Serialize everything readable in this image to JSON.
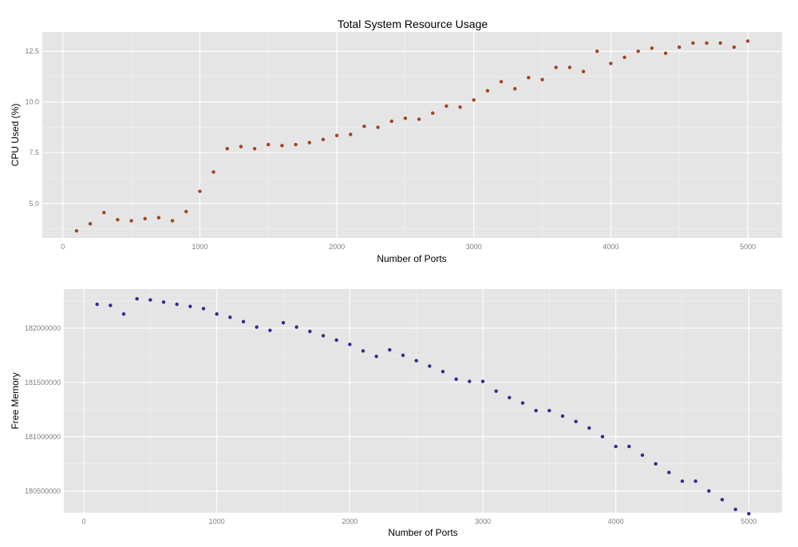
{
  "chart_data": [
    {
      "type": "scatter",
      "title": "Total System Resource Usage",
      "xlabel": "Number of Ports",
      "ylabel": "CPU Used (%)",
      "xlim": [
        -150,
        5250
      ],
      "ylim": [
        3.3,
        13.45
      ],
      "x_ticks": [
        0,
        1000,
        2000,
        3000,
        4000,
        5000
      ],
      "x_tick_labels": [
        "0",
        "1000",
        "2000",
        "3000",
        "4000",
        "5000"
      ],
      "y_ticks": [
        5.0,
        7.5,
        10.0,
        12.5
      ],
      "y_tick_labels": [
        "5.0",
        "7.5",
        "10.0",
        "12.5"
      ],
      "grid": true,
      "point_color": "#a0461f",
      "x": [
        100,
        200,
        300,
        400,
        500,
        600,
        700,
        800,
        900,
        1000,
        1100,
        1200,
        1300,
        1400,
        1500,
        1600,
        1700,
        1800,
        1900,
        2000,
        2100,
        2200,
        2300,
        2400,
        2500,
        2600,
        2700,
        2800,
        2900,
        3000,
        3100,
        3200,
        3300,
        3400,
        3500,
        3600,
        3700,
        3800,
        3900,
        4000,
        4100,
        4200,
        4300,
        4400,
        4500,
        4600,
        4700,
        4800,
        4900,
        5000
      ],
      "y": [
        3.65,
        4.0,
        4.55,
        4.2,
        4.15,
        4.25,
        4.3,
        4.15,
        4.6,
        5.6,
        6.55,
        7.7,
        7.8,
        7.7,
        7.9,
        7.85,
        7.9,
        8.0,
        8.15,
        8.35,
        8.4,
        8.8,
        8.75,
        9.05,
        9.2,
        9.15,
        9.45,
        9.8,
        9.75,
        10.1,
        10.55,
        11.0,
        10.65,
        11.2,
        11.1,
        11.7,
        11.7,
        11.5,
        12.5,
        11.9,
        12.2,
        12.5,
        12.65,
        12.4,
        12.7,
        12.9,
        12.9,
        12.9,
        12.7,
        13.0
      ]
    },
    {
      "type": "scatter",
      "title": "",
      "xlabel": "Number of Ports",
      "ylabel": "Free Memory",
      "xlim": [
        -150,
        5250
      ],
      "ylim": [
        180300000,
        182360000
      ],
      "x_ticks": [
        0,
        1000,
        2000,
        3000,
        4000,
        5000
      ],
      "x_tick_labels": [
        "0",
        "1000",
        "2000",
        "3000",
        "4000",
        "5000"
      ],
      "y_ticks": [
        180500000,
        181000000,
        181500000,
        182000000
      ],
      "y_tick_labels": [
        "180500000",
        "181000000",
        "181500000",
        "182000000"
      ],
      "grid": true,
      "point_color": "#2e2e8b",
      "x": [
        100,
        200,
        300,
        400,
        500,
        600,
        700,
        800,
        900,
        1000,
        1100,
        1200,
        1300,
        1400,
        1500,
        1600,
        1700,
        1800,
        1900,
        2000,
        2100,
        2200,
        2300,
        2400,
        2500,
        2600,
        2700,
        2800,
        2900,
        3000,
        3100,
        3200,
        3300,
        3400,
        3500,
        3600,
        3700,
        3800,
        3900,
        4000,
        4100,
        4200,
        4300,
        4400,
        4500,
        4600,
        4700,
        4800,
        4900,
        5000
      ],
      "y": [
        182220000,
        182210000,
        182130000,
        182270000,
        182260000,
        182240000,
        182220000,
        182200000,
        182180000,
        182130000,
        182100000,
        182060000,
        182010000,
        181980000,
        182050000,
        182010000,
        181970000,
        181930000,
        181890000,
        181850000,
        181790000,
        181740000,
        181800000,
        181750000,
        181700000,
        181650000,
        181600000,
        181530000,
        181510000,
        181510000,
        181420000,
        181360000,
        181310000,
        181240000,
        181240000,
        181190000,
        181140000,
        181080000,
        181000000,
        180910000,
        180910000,
        180830000,
        180750000,
        180670000,
        180590000,
        180590000,
        180500000,
        180420000,
        180330000,
        180290000
      ]
    }
  ]
}
